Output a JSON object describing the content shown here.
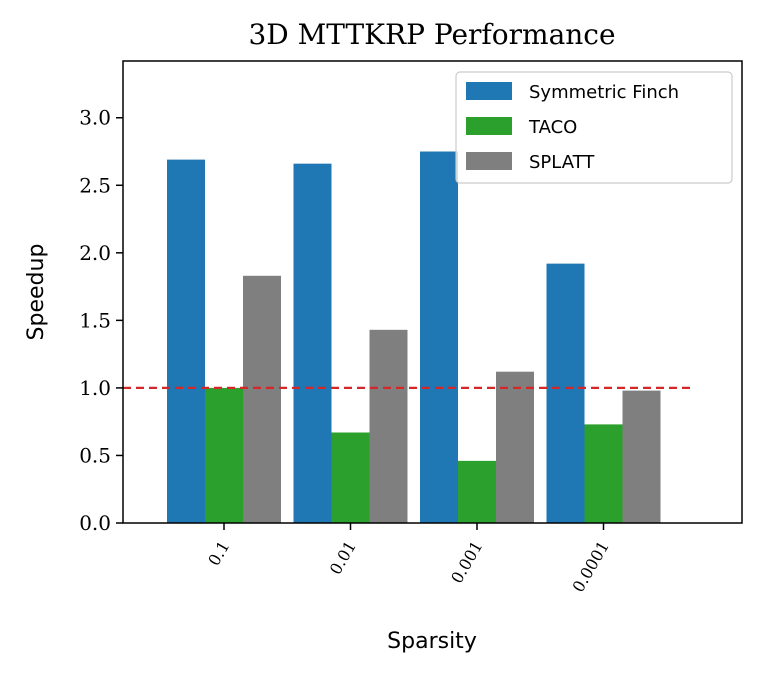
{
  "chart_data": {
    "type": "bar",
    "title": "3D MTTKRP Performance",
    "xlabel": "Sparsity",
    "ylabel": "Speedup",
    "categories": [
      "0.1",
      "0.01",
      "0.001",
      "0.0001"
    ],
    "series": [
      {
        "name": "Symmetric Finch",
        "color": "#1f77b4",
        "values": [
          2.69,
          2.66,
          2.75,
          1.92
        ]
      },
      {
        "name": "TACO",
        "color": "#2ca02c",
        "values": [
          1.0,
          0.67,
          0.46,
          0.73
        ]
      },
      {
        "name": "SPLATT",
        "color": "#7f7f7f",
        "values": [
          1.83,
          1.43,
          1.12,
          0.98
        ]
      }
    ],
    "ylim": [
      0,
      3.42
    ],
    "yticks": [
      "0.0",
      "0.5",
      "1.0",
      "1.5",
      "2.0",
      "2.5",
      "3.0"
    ],
    "reference_line": {
      "value": 1.0,
      "color": "#d62728",
      "style": "dashed"
    },
    "legend_position": "top-right",
    "grid": false
  }
}
